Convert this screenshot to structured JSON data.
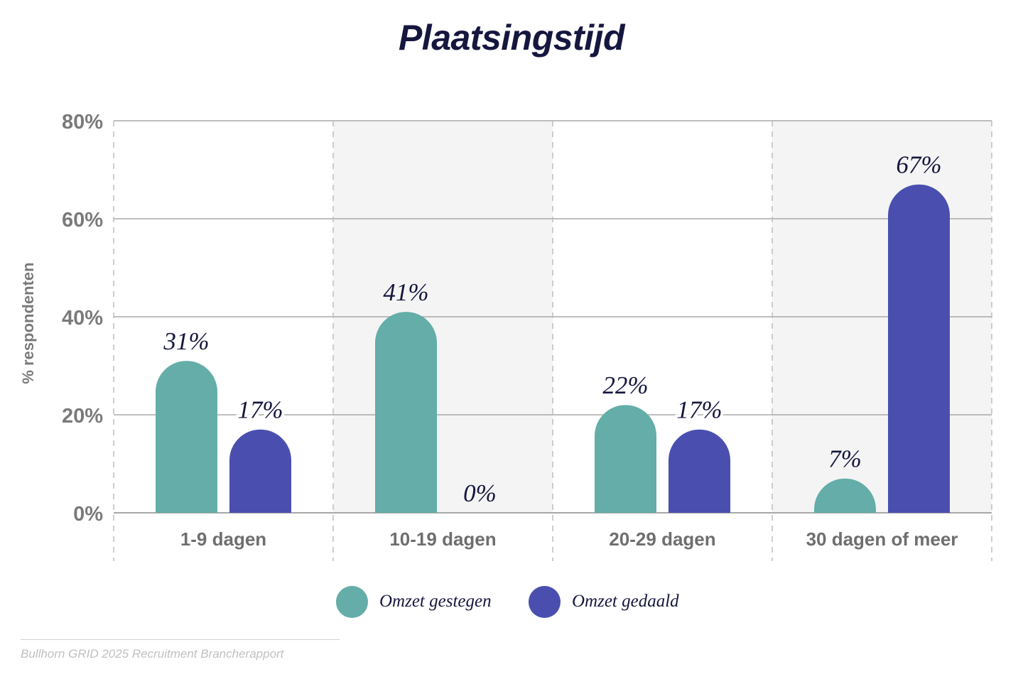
{
  "title": "Plaatsingstijd",
  "chart_data": {
    "type": "bar",
    "title": "Plaatsingstijd",
    "ylabel": "% respondenten",
    "xlabel": "",
    "categories": [
      "1-9 dagen",
      "10-19 dagen",
      "20-29 dagen",
      "30 dagen of meer"
    ],
    "series": [
      {
        "name": "Omzet gestegen",
        "values": [
          31,
          41,
          22,
          7
        ],
        "labels": [
          "31%",
          "41%",
          "22%",
          "7%"
        ],
        "color": "#64ada8"
      },
      {
        "name": "Omzet gedaald",
        "values": [
          17,
          0,
          17,
          67
        ],
        "labels": [
          "17%",
          "0%",
          "17%",
          "67%"
        ],
        "color": "#4a4faf"
      }
    ],
    "ylim": [
      0,
      80
    ],
    "yticks": [
      0,
      20,
      40,
      60,
      80
    ],
    "ytick_labels": [
      "0%",
      "20%",
      "40%",
      "60%",
      "80%"
    ],
    "grid": true,
    "alternate_band_color": "#f4f4f4",
    "legend_position": "bottom"
  },
  "source": "Bullhorn GRID 2025 Recruitment Brancherapport"
}
